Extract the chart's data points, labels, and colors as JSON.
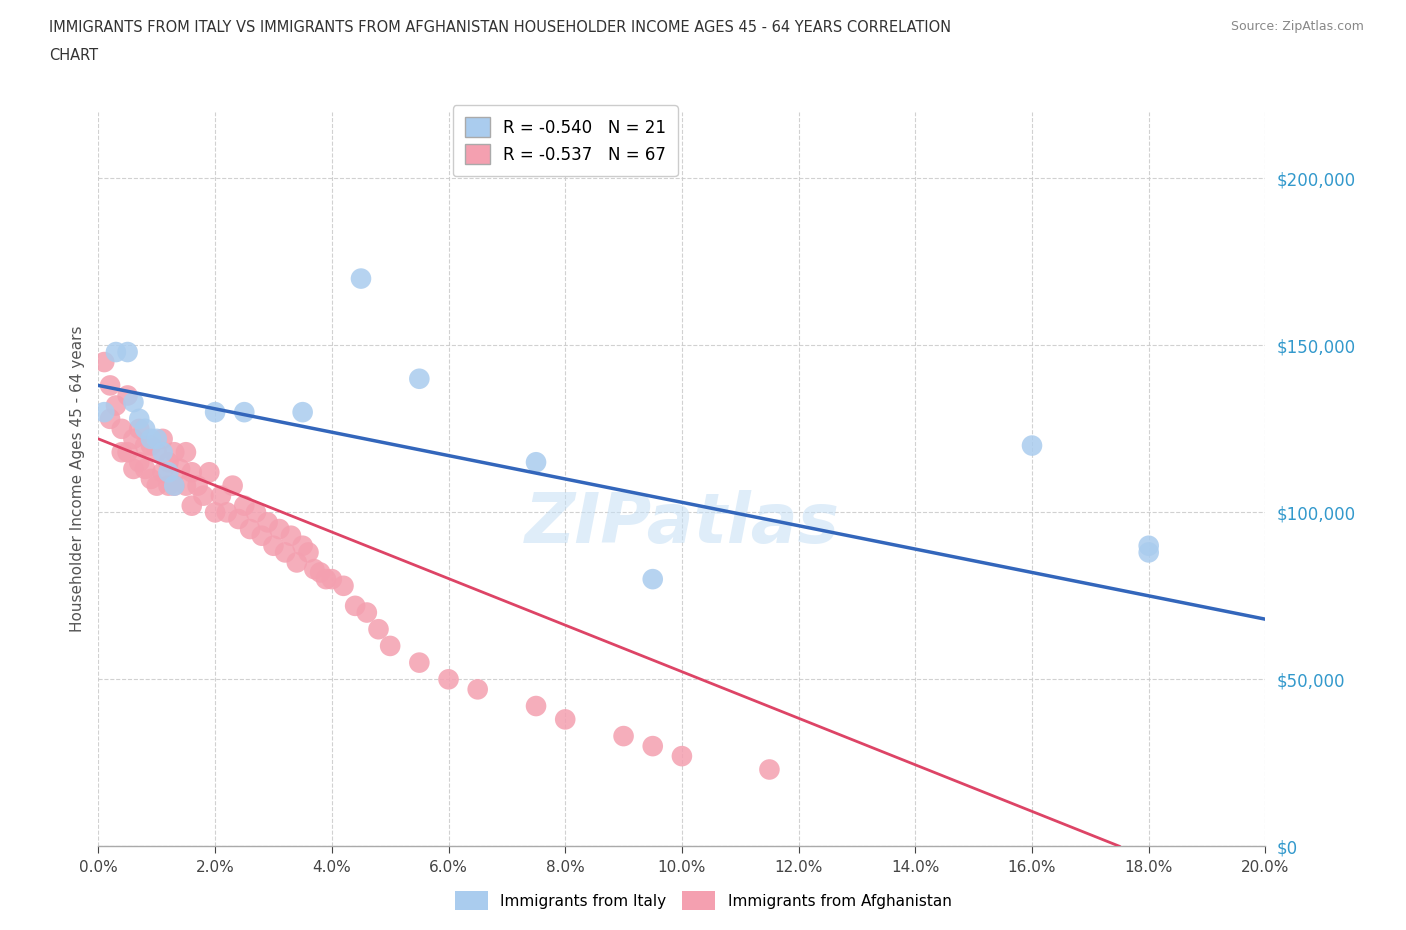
{
  "title_line1": "IMMIGRANTS FROM ITALY VS IMMIGRANTS FROM AFGHANISTAN HOUSEHOLDER INCOME AGES 45 - 64 YEARS CORRELATION",
  "title_line2": "CHART",
  "source": "Source: ZipAtlas.com",
  "ylabel": "Householder Income Ages 45 - 64 years",
  "legend_italy": "Immigrants from Italy",
  "legend_afghanistan": "Immigrants from Afghanistan",
  "R_italy": -0.54,
  "N_italy": 21,
  "R_afghanistan": -0.537,
  "N_afghanistan": 67,
  "italy_color": "#aaccee",
  "afghanistan_color": "#f4a0b0",
  "trendline_italy_color": "#3366bb",
  "trendline_afghanistan_color": "#dd4466",
  "watermark": "ZIPatlas",
  "xlim": [
    0.0,
    0.2
  ],
  "ylim": [
    0,
    220000
  ],
  "xtick_vals": [
    0.0,
    0.02,
    0.04,
    0.06,
    0.08,
    0.1,
    0.12,
    0.14,
    0.16,
    0.18,
    0.2
  ],
  "ytick_vals": [
    0,
    50000,
    100000,
    150000,
    200000
  ],
  "italy_x": [
    0.001,
    0.003,
    0.005,
    0.006,
    0.007,
    0.008,
    0.009,
    0.01,
    0.011,
    0.012,
    0.013,
    0.02,
    0.025,
    0.035,
    0.045,
    0.055,
    0.075,
    0.095,
    0.16,
    0.18,
    0.18
  ],
  "italy_y": [
    130000,
    148000,
    148000,
    133000,
    128000,
    125000,
    122000,
    122000,
    118000,
    112000,
    108000,
    130000,
    130000,
    130000,
    170000,
    140000,
    115000,
    80000,
    120000,
    90000,
    88000
  ],
  "afghanistan_x": [
    0.001,
    0.002,
    0.002,
    0.003,
    0.004,
    0.004,
    0.005,
    0.005,
    0.006,
    0.006,
    0.007,
    0.007,
    0.008,
    0.008,
    0.009,
    0.009,
    0.01,
    0.01,
    0.011,
    0.011,
    0.012,
    0.012,
    0.013,
    0.013,
    0.014,
    0.015,
    0.015,
    0.016,
    0.016,
    0.017,
    0.018,
    0.019,
    0.02,
    0.021,
    0.022,
    0.023,
    0.024,
    0.025,
    0.026,
    0.027,
    0.028,
    0.029,
    0.03,
    0.031,
    0.032,
    0.033,
    0.034,
    0.035,
    0.036,
    0.037,
    0.038,
    0.039,
    0.04,
    0.042,
    0.044,
    0.046,
    0.048,
    0.05,
    0.055,
    0.06,
    0.065,
    0.075,
    0.08,
    0.09,
    0.095,
    0.1,
    0.115
  ],
  "afghanistan_y": [
    145000,
    138000,
    128000,
    132000,
    125000,
    118000,
    135000,
    118000,
    122000,
    113000,
    125000,
    115000,
    120000,
    113000,
    120000,
    110000,
    118000,
    108000,
    122000,
    112000,
    115000,
    108000,
    118000,
    108000,
    113000,
    118000,
    108000,
    112000,
    102000,
    108000,
    105000,
    112000,
    100000,
    105000,
    100000,
    108000,
    98000,
    102000,
    95000,
    100000,
    93000,
    97000,
    90000,
    95000,
    88000,
    93000,
    85000,
    90000,
    88000,
    83000,
    82000,
    80000,
    80000,
    78000,
    72000,
    70000,
    65000,
    60000,
    55000,
    50000,
    47000,
    42000,
    38000,
    33000,
    30000,
    27000,
    23000
  ],
  "background_color": "#ffffff",
  "grid_color": "#cccccc"
}
